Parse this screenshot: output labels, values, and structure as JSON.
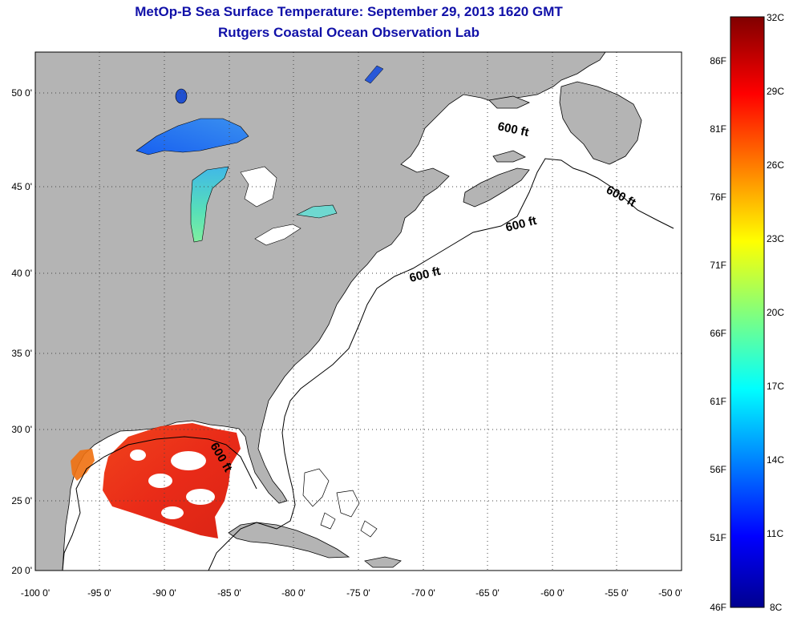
{
  "header": {
    "title": "MetOp-B Sea Surface Temperature:  September 29, 2013 1620 GMT",
    "subtitle": "Rutgers Coastal Ocean Observation Lab"
  },
  "map": {
    "lon_range": [
      -100,
      -50
    ],
    "lat_range": [
      20,
      52.5
    ],
    "grid": "dotted",
    "lon_ticks": [
      "-100 0'",
      "-95 0'",
      "-90 0'",
      "-85 0'",
      "-80 0'",
      "-75 0'",
      "-70 0'",
      "-65 0'",
      "-60 0'",
      "-55 0'",
      "-50 0'"
    ],
    "lat_ticks": [
      "20 0'",
      "25 0'",
      "30 0'",
      "35 0'",
      "40 0'",
      "45 0'",
      "50 0'"
    ],
    "contour_labels": [
      "600 ft",
      "600 ft",
      "600 ft",
      "600 ft",
      "600 ft"
    ],
    "land_color": "#b4b4b4",
    "ocean_color": "#ffffff"
  },
  "colorbar": {
    "celsius_labels": [
      "32C",
      "29C",
      "26C",
      "23C",
      "20C",
      "17C",
      "14C",
      "11C",
      "8C"
    ],
    "fahrenheit_labels": [
      "86F",
      "81F",
      "76F",
      "71F",
      "66F",
      "61F",
      "56F",
      "51F",
      "46F"
    ],
    "range_c": [
      8,
      32
    ],
    "colors": [
      "#00008f",
      "#0000ff",
      "#00ffff",
      "#ffff00",
      "#ff0000",
      "#800000"
    ]
  }
}
